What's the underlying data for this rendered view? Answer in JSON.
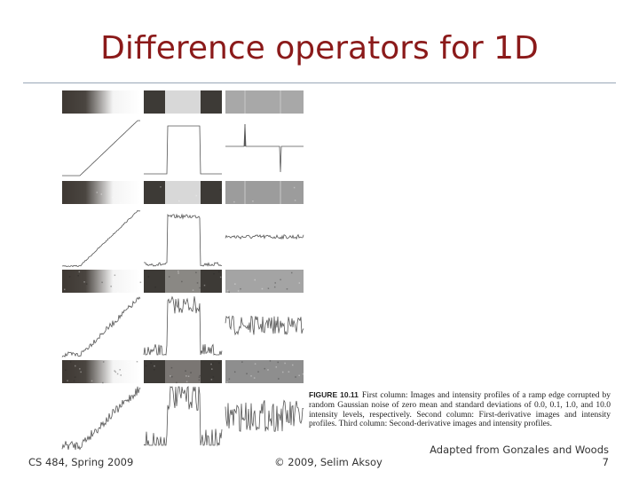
{
  "slide": {
    "title": "Difference operators for 1D",
    "figure": {
      "label": "FIGURE 10.11",
      "caption": "First column: Images and intensity profiles of a ramp edge corrupted by random Gaussian noise of zero mean and standard deviations of 0.0, 0.1, 1.0, and 10.0 intensity levels, respectively. Second column: First-derivative images and intensity profiles. Third column: Second-derivative images and intensity profiles."
    },
    "footer": {
      "course": "CS 484, Spring 2009",
      "copyright": "© 2009, Selim Aksoy",
      "credit": "Adapted from Gonzales and Woods",
      "page": "7"
    }
  }
}
